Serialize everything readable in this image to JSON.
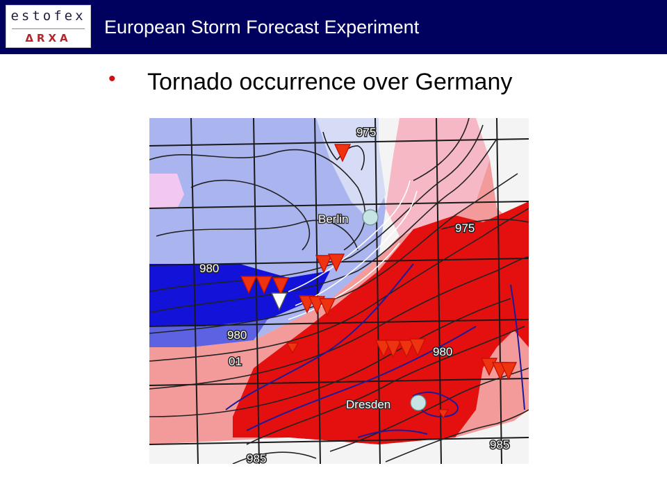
{
  "header": {
    "logo_text": "estofex",
    "logo_subtext": "ΔRXA",
    "title": "European Storm Forecast Experiment",
    "background": "#00005e"
  },
  "slide": {
    "bullet": "•",
    "title": "Tornado occurrence over Germany",
    "bullet_color": "#d01010"
  },
  "map": {
    "cities": [
      {
        "name": "Berlin"
      },
      {
        "name": "Dresden"
      }
    ],
    "isobar_labels": [
      "975",
      "975",
      "980",
      "980",
      "980",
      "985",
      "985",
      "01"
    ],
    "tornado_marker_color": "#ee3311",
    "highlight_marker_color": "#ffffff",
    "city_marker_color": "#c6e4e4",
    "tornado_report_count": 18,
    "highlighted_report_count": 1
  }
}
